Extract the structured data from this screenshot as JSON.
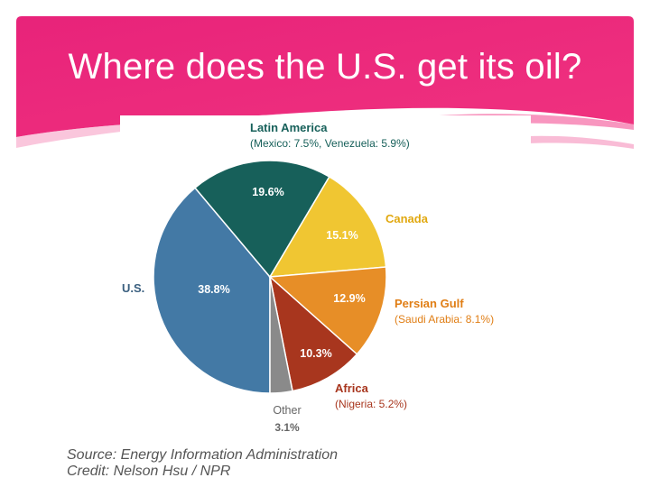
{
  "slide": {
    "title": "Where does the U.S. get its oil?",
    "source": "Source: Energy Information Administration",
    "credit": "Credit: Nelson Hsu / NPR"
  },
  "colors": {
    "header": "#ec2a7a",
    "header_light": "#f56aa4",
    "slice_edge": "#ffffff"
  },
  "chart_data": {
    "type": "pie",
    "title": "",
    "start": "U.S. slice begins at bottom (6 o'clock) and proceeds clockwise",
    "slices": [
      {
        "name": "U.S.",
        "value": 38.8,
        "pct_label": "38.8%",
        "color": "#4379a5",
        "label_color": "#3a5f7f",
        "sub": ""
      },
      {
        "name": "Latin America",
        "value": 19.6,
        "pct_label": "19.6%",
        "color": "#17605a",
        "label_color": "#17605a",
        "sub": "(Mexico: 7.5%, Venezuela: 5.9%)"
      },
      {
        "name": "Canada",
        "value": 15.1,
        "pct_label": "15.1%",
        "color": "#f0c632",
        "label_color": "#e1a80f",
        "sub": ""
      },
      {
        "name": "Persian Gulf",
        "value": 12.9,
        "pct_label": "12.9%",
        "color": "#e78e27",
        "label_color": "#e07e15",
        "sub": "(Saudi Arabia: 8.1%)"
      },
      {
        "name": "Africa",
        "value": 10.3,
        "pct_label": "10.3%",
        "color": "#a8361e",
        "label_color": "#a8361e",
        "sub": "(Nigeria: 5.2%)"
      },
      {
        "name": "Other",
        "value": 3.1,
        "pct_label": "3.1%",
        "color": "#8a8a8a",
        "label_color": "#666666",
        "sub": ""
      }
    ]
  }
}
